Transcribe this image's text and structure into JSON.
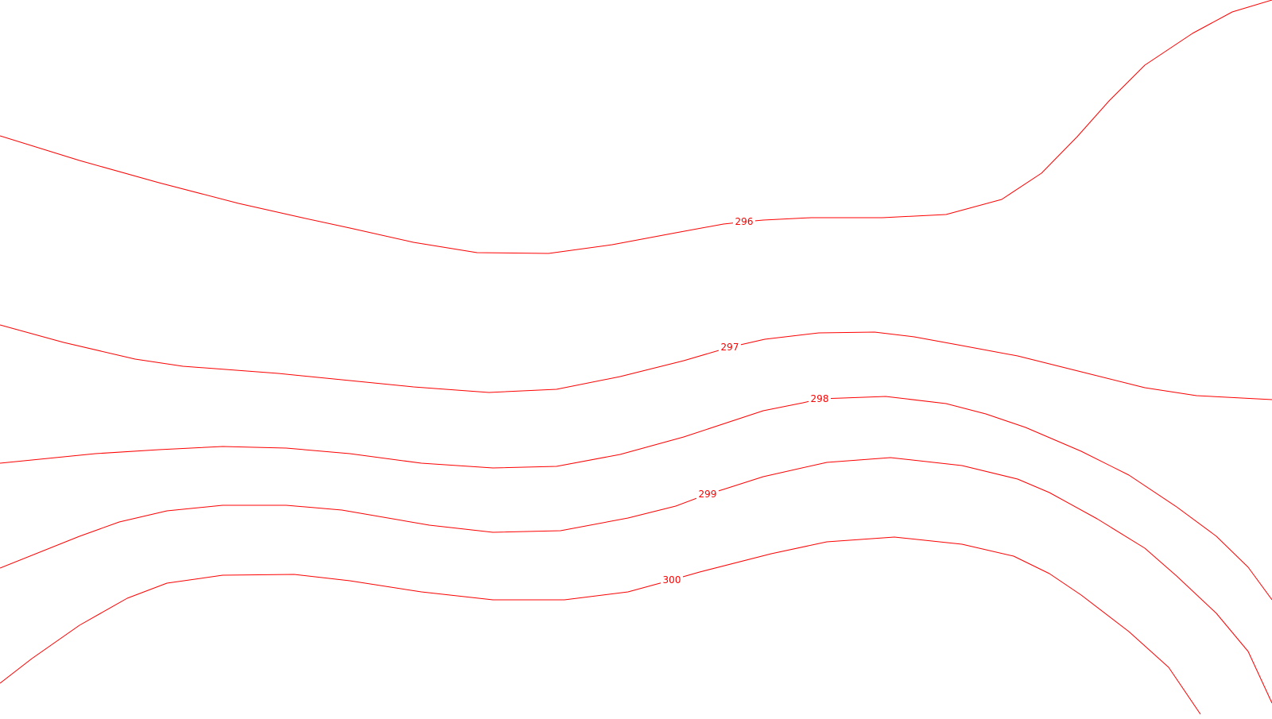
{
  "map": {
    "line_color": "#ff0000",
    "background": "#ffffff",
    "contours": [
      {
        "level": "296"
      },
      {
        "level": "297"
      },
      {
        "level": "298"
      },
      {
        "level": "299"
      },
      {
        "level": "300"
      }
    ]
  }
}
